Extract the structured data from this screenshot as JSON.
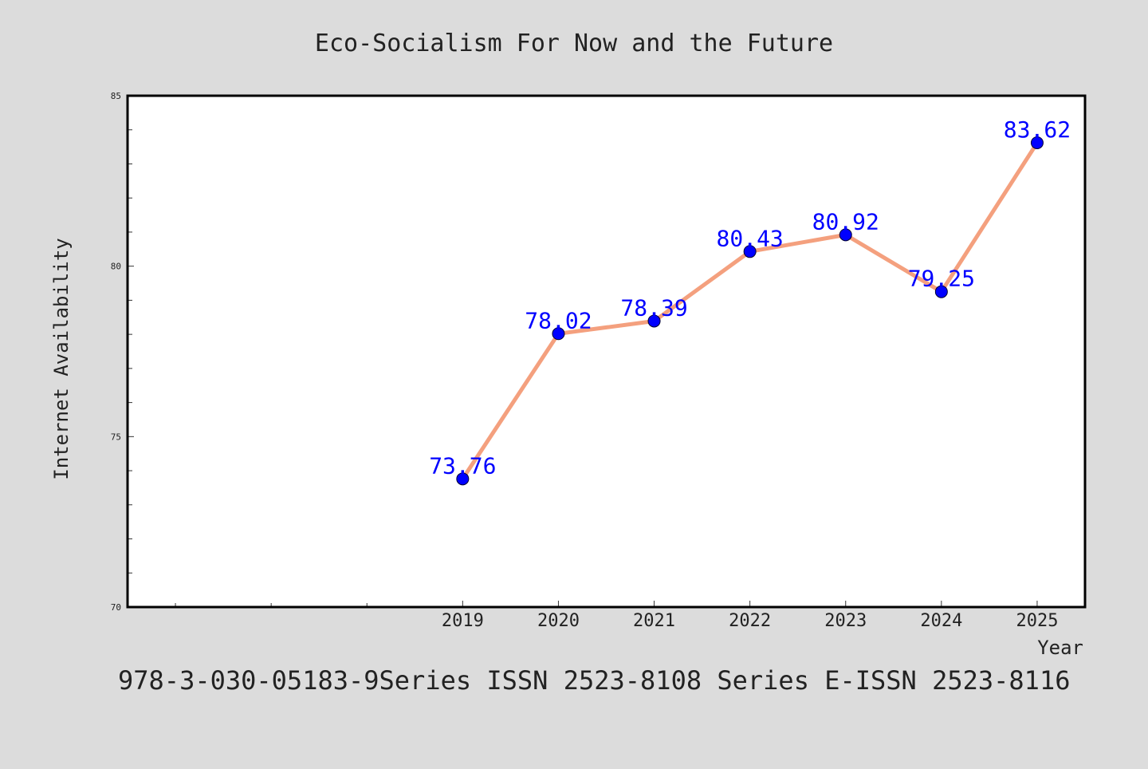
{
  "colors": {
    "background": "#dcdcdc",
    "plot_background": "#ffffff",
    "line": "#f4a07e",
    "marker": "#0000ff",
    "label": "#0000ff",
    "text": "#222222"
  },
  "chart_data": {
    "type": "line",
    "title": "Eco-Socialism For Now and the Future",
    "xlabel": "Year",
    "ylabel": "Internet Availability",
    "footer": "978-3-030-05183-9Series ISSN 2523-8108 Series E-ISSN 2523-8116",
    "x": [
      2019,
      2020,
      2021,
      2022,
      2023,
      2024,
      2025
    ],
    "x_tick_labels": [
      "2019",
      "2020",
      "2021",
      "2022",
      "2023",
      "2024",
      "2025"
    ],
    "xlim": [
      2015.5,
      2025.5
    ],
    "ylim": [
      70,
      85
    ],
    "y_ticks": [
      70,
      75,
      80,
      85
    ],
    "y_tick_labels": [
      "70",
      "75",
      "80",
      "85"
    ],
    "y_minor_step": 1,
    "x_minor_ticks": [
      2016,
      2017,
      2018
    ],
    "grid": false,
    "series": [
      {
        "values": [
          73.76,
          78.02,
          78.39,
          80.43,
          80.92,
          79.25,
          83.62
        ],
        "labels": [
          "73.76",
          "78.02",
          "78.39",
          "80.43",
          "80.92",
          "79.25",
          "83.62"
        ]
      }
    ]
  }
}
